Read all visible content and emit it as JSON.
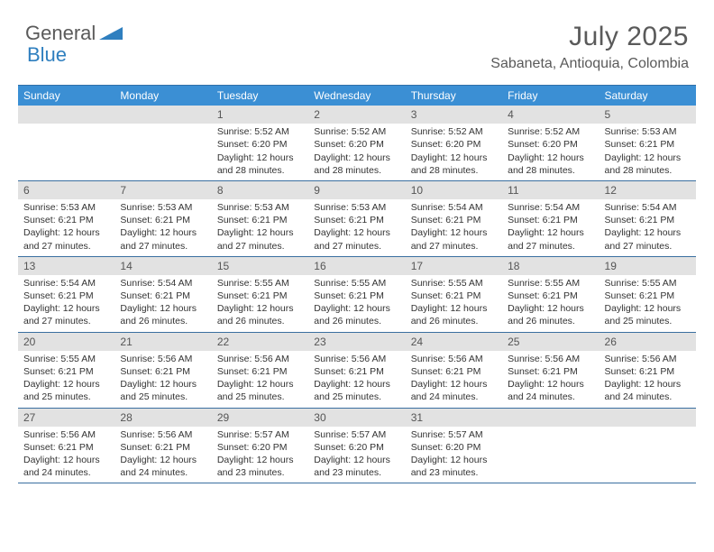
{
  "logo": {
    "part1": "General",
    "part2": "Blue"
  },
  "title": "July 2025",
  "location": "Sabaneta, Antioquia, Colombia",
  "colors": {
    "header_bg": "#3b8fd4",
    "header_text": "#ffffff",
    "border": "#3a6fa0",
    "daynum_bg": "#e2e2e2",
    "text": "#333333",
    "title_text": "#5a5a5a",
    "logo_gray": "#5a5a5a",
    "logo_blue": "#2f7fbf"
  },
  "day_headers": [
    "Sunday",
    "Monday",
    "Tuesday",
    "Wednesday",
    "Thursday",
    "Friday",
    "Saturday"
  ],
  "weeks": [
    [
      null,
      null,
      {
        "n": "1",
        "sr": "5:52 AM",
        "ss": "6:20 PM",
        "dl": "12 hours and 28 minutes."
      },
      {
        "n": "2",
        "sr": "5:52 AM",
        "ss": "6:20 PM",
        "dl": "12 hours and 28 minutes."
      },
      {
        "n": "3",
        "sr": "5:52 AM",
        "ss": "6:20 PM",
        "dl": "12 hours and 28 minutes."
      },
      {
        "n": "4",
        "sr": "5:52 AM",
        "ss": "6:20 PM",
        "dl": "12 hours and 28 minutes."
      },
      {
        "n": "5",
        "sr": "5:53 AM",
        "ss": "6:21 PM",
        "dl": "12 hours and 28 minutes."
      }
    ],
    [
      {
        "n": "6",
        "sr": "5:53 AM",
        "ss": "6:21 PM",
        "dl": "12 hours and 27 minutes."
      },
      {
        "n": "7",
        "sr": "5:53 AM",
        "ss": "6:21 PM",
        "dl": "12 hours and 27 minutes."
      },
      {
        "n": "8",
        "sr": "5:53 AM",
        "ss": "6:21 PM",
        "dl": "12 hours and 27 minutes."
      },
      {
        "n": "9",
        "sr": "5:53 AM",
        "ss": "6:21 PM",
        "dl": "12 hours and 27 minutes."
      },
      {
        "n": "10",
        "sr": "5:54 AM",
        "ss": "6:21 PM",
        "dl": "12 hours and 27 minutes."
      },
      {
        "n": "11",
        "sr": "5:54 AM",
        "ss": "6:21 PM",
        "dl": "12 hours and 27 minutes."
      },
      {
        "n": "12",
        "sr": "5:54 AM",
        "ss": "6:21 PM",
        "dl": "12 hours and 27 minutes."
      }
    ],
    [
      {
        "n": "13",
        "sr": "5:54 AM",
        "ss": "6:21 PM",
        "dl": "12 hours and 27 minutes."
      },
      {
        "n": "14",
        "sr": "5:54 AM",
        "ss": "6:21 PM",
        "dl": "12 hours and 26 minutes."
      },
      {
        "n": "15",
        "sr": "5:55 AM",
        "ss": "6:21 PM",
        "dl": "12 hours and 26 minutes."
      },
      {
        "n": "16",
        "sr": "5:55 AM",
        "ss": "6:21 PM",
        "dl": "12 hours and 26 minutes."
      },
      {
        "n": "17",
        "sr": "5:55 AM",
        "ss": "6:21 PM",
        "dl": "12 hours and 26 minutes."
      },
      {
        "n": "18",
        "sr": "5:55 AM",
        "ss": "6:21 PM",
        "dl": "12 hours and 26 minutes."
      },
      {
        "n": "19",
        "sr": "5:55 AM",
        "ss": "6:21 PM",
        "dl": "12 hours and 25 minutes."
      }
    ],
    [
      {
        "n": "20",
        "sr": "5:55 AM",
        "ss": "6:21 PM",
        "dl": "12 hours and 25 minutes."
      },
      {
        "n": "21",
        "sr": "5:56 AM",
        "ss": "6:21 PM",
        "dl": "12 hours and 25 minutes."
      },
      {
        "n": "22",
        "sr": "5:56 AM",
        "ss": "6:21 PM",
        "dl": "12 hours and 25 minutes."
      },
      {
        "n": "23",
        "sr": "5:56 AM",
        "ss": "6:21 PM",
        "dl": "12 hours and 25 minutes."
      },
      {
        "n": "24",
        "sr": "5:56 AM",
        "ss": "6:21 PM",
        "dl": "12 hours and 24 minutes."
      },
      {
        "n": "25",
        "sr": "5:56 AM",
        "ss": "6:21 PM",
        "dl": "12 hours and 24 minutes."
      },
      {
        "n": "26",
        "sr": "5:56 AM",
        "ss": "6:21 PM",
        "dl": "12 hours and 24 minutes."
      }
    ],
    [
      {
        "n": "27",
        "sr": "5:56 AM",
        "ss": "6:21 PM",
        "dl": "12 hours and 24 minutes."
      },
      {
        "n": "28",
        "sr": "5:56 AM",
        "ss": "6:21 PM",
        "dl": "12 hours and 24 minutes."
      },
      {
        "n": "29",
        "sr": "5:57 AM",
        "ss": "6:20 PM",
        "dl": "12 hours and 23 minutes."
      },
      {
        "n": "30",
        "sr": "5:57 AM",
        "ss": "6:20 PM",
        "dl": "12 hours and 23 minutes."
      },
      {
        "n": "31",
        "sr": "5:57 AM",
        "ss": "6:20 PM",
        "dl": "12 hours and 23 minutes."
      },
      null,
      null
    ]
  ],
  "labels": {
    "sunrise": "Sunrise:",
    "sunset": "Sunset:",
    "daylight": "Daylight:"
  }
}
